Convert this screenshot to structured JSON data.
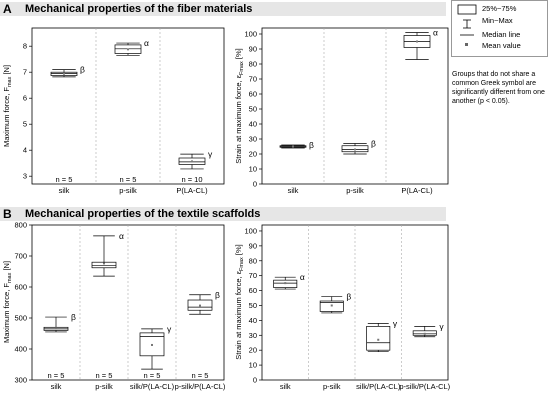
{
  "panels": {
    "A": {
      "letter": "A",
      "title": "Mechanical properties of the fiber materials"
    },
    "B": {
      "letter": "B",
      "title": "Mechanical properties of the textile scaffolds"
    }
  },
  "legend": {
    "box_label": "25%~75%",
    "whisker_label": "Min~Max",
    "median_label": "Median line",
    "mean_label": "Mean value"
  },
  "note": "Groups that do not share a common Greek symbol are significantly different from one another (p < 0.05).",
  "chart_data": [
    {
      "id": "A_force",
      "type": "box",
      "ylabel": "Maximum force, F",
      "ylabel_sub": "max",
      "ylabel_unit": " [N]",
      "ylim": [
        2.7,
        8.7
      ],
      "yticks": [
        3,
        4,
        5,
        6,
        7,
        8
      ],
      "categories": [
        "silk",
        "p-silk",
        "P(LA-CL)"
      ],
      "n_labels": [
        "n = 5",
        "n = 5",
        "n = 10"
      ],
      "groups": [
        "β",
        "α",
        "γ"
      ],
      "boxes": [
        {
          "min": 6.82,
          "q1": 6.87,
          "median": 6.95,
          "q3": 7.0,
          "max": 7.1,
          "mean": 6.94
        },
        {
          "min": 7.65,
          "q1": 7.72,
          "median": 7.9,
          "q3": 8.05,
          "max": 8.12,
          "mean": 7.88
        },
        {
          "min": 3.28,
          "q1": 3.45,
          "median": 3.55,
          "q3": 3.7,
          "max": 3.85,
          "mean": 3.57
        }
      ]
    },
    {
      "id": "A_strain",
      "type": "box",
      "ylabel": "Strain at maximum force, ε",
      "ylabel_sub": "Fmax",
      "ylabel_unit": " [%]",
      "ylim": [
        0,
        104
      ],
      "yticks": [
        0,
        10,
        20,
        30,
        40,
        50,
        60,
        70,
        80,
        90,
        100
      ],
      "categories": [
        "silk",
        "p-silk",
        "P(LA-CL)"
      ],
      "groups": [
        "β",
        "β",
        "α"
      ],
      "boxes": [
        {
          "min": 24,
          "q1": 24.5,
          "median": 25,
          "q3": 25.5,
          "max": 26,
          "mean": 25
        },
        {
          "min": 20,
          "q1": 21.5,
          "median": 23,
          "q3": 25.5,
          "max": 27,
          "mean": 23
        },
        {
          "min": 83,
          "q1": 91,
          "median": 95,
          "q3": 99,
          "max": 101,
          "mean": 95
        }
      ]
    },
    {
      "id": "B_force",
      "type": "box",
      "ylabel": "Maximum force, F",
      "ylabel_sub": "max",
      "ylabel_unit": " [N]",
      "ylim": [
        300,
        800
      ],
      "yticks": [
        300,
        400,
        500,
        600,
        700,
        800
      ],
      "categories": [
        "silk",
        "p-silk",
        "silk/P(LA-CL)",
        "p-silk/P(LA-CL)"
      ],
      "n_labels": [
        "n = 5",
        "n = 5",
        "n = 5",
        "n = 5"
      ],
      "groups": [
        "β",
        "α",
        "γ",
        "β"
      ],
      "boxes": [
        {
          "min": 455,
          "q1": 460,
          "median": 465,
          "q3": 470,
          "max": 503,
          "mean": 467
        },
        {
          "min": 635,
          "q1": 662,
          "median": 670,
          "q3": 680,
          "max": 765,
          "mean": 676
        },
        {
          "min": 335,
          "q1": 378,
          "median": 440,
          "q3": 452,
          "max": 465,
          "mean": 413
        },
        {
          "min": 512,
          "q1": 525,
          "median": 535,
          "q3": 558,
          "max": 575,
          "mean": 540
        }
      ]
    },
    {
      "id": "B_strain",
      "type": "box",
      "ylabel": "Strain at maximum force, ε",
      "ylabel_sub": "Fmax",
      "ylabel_unit": " [%]",
      "ylim": [
        0,
        104
      ],
      "yticks": [
        0,
        10,
        20,
        30,
        40,
        50,
        60,
        70,
        80,
        90,
        100
      ],
      "categories": [
        "silk",
        "p-silk",
        "silk/P(LA-CL)",
        "p-silk/P(LA-CL)"
      ],
      "groups": [
        "α",
        "β",
        "γ",
        "γ"
      ],
      "boxes": [
        {
          "min": 61,
          "q1": 62,
          "median": 65,
          "q3": 67,
          "max": 69,
          "mean": 65
        },
        {
          "min": 45,
          "q1": 46,
          "median": 52,
          "q3": 53,
          "max": 56,
          "mean": 50
        },
        {
          "min": 19,
          "q1": 20,
          "median": 25,
          "q3": 36,
          "max": 38,
          "mean": 27
        },
        {
          "min": 29,
          "q1": 30,
          "median": 31,
          "q3": 33,
          "max": 36,
          "mean": 31
        }
      ]
    }
  ]
}
